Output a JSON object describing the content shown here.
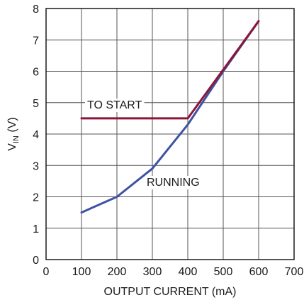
{
  "chart_data": {
    "type": "line",
    "xlabel": "OUTPUT CURRENT (mA)",
    "ylabel": "V_IN (V)",
    "ylabel_main": "V",
    "ylabel_sub": "IN",
    "ylabel_unit": " (V)",
    "xlim": [
      0,
      700
    ],
    "ylim": [
      0,
      8
    ],
    "xticks": [
      0,
      100,
      200,
      300,
      400,
      500,
      600,
      700
    ],
    "yticks": [
      0,
      1,
      2,
      3,
      4,
      5,
      6,
      7,
      8
    ],
    "grid": true,
    "series": [
      {
        "name": "TO START",
        "color": "#8c1538",
        "x": [
          100,
          400,
          600
        ],
        "y": [
          4.5,
          4.5,
          7.6
        ]
      },
      {
        "name": "RUNNING",
        "color": "#3d52a3",
        "x": [
          100,
          200,
          300,
          400,
          500,
          600
        ],
        "y": [
          1.5,
          2.0,
          2.9,
          4.3,
          6.0,
          7.6
        ]
      }
    ],
    "annotations": [
      {
        "text": "TO START",
        "series": "TO START"
      },
      {
        "text": "RUNNING",
        "series": "RUNNING"
      }
    ]
  }
}
